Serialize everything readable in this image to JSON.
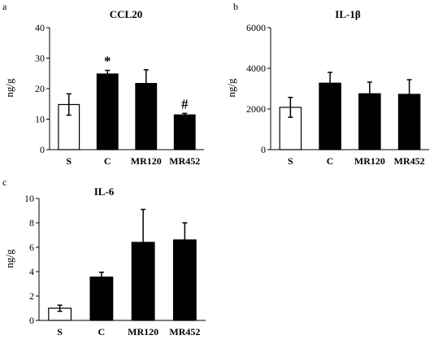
{
  "chart_data": [
    {
      "panel": "a",
      "type": "bar",
      "title": "CCL20",
      "xlabel": "",
      "ylabel": "ng/g",
      "categories": [
        "S",
        "C",
        "MR120",
        "MR452"
      ],
      "values": [
        14.8,
        24.8,
        21.7,
        11.4
      ],
      "errors": [
        3.5,
        1.2,
        4.5,
        0.5
      ],
      "bar_fill": [
        "white",
        "black",
        "black",
        "black"
      ],
      "annotations": [
        "",
        "*",
        "",
        "#"
      ],
      "ylim": [
        0,
        40
      ],
      "yticks": [
        "0",
        "10",
        "20",
        "30",
        "40"
      ],
      "grid": false,
      "legend": "none"
    },
    {
      "panel": "b",
      "type": "bar",
      "title": "IL-1β",
      "xlabel": "",
      "ylabel": "ng/g",
      "categories": [
        "S",
        "C",
        "MR120",
        "MR452"
      ],
      "values": [
        2080,
        3270,
        2750,
        2720
      ],
      "errors": [
        490,
        530,
        570,
        720
      ],
      "bar_fill": [
        "white",
        "black",
        "black",
        "black"
      ],
      "annotations": [
        "",
        "",
        "",
        ""
      ],
      "ylim": [
        0,
        6000
      ],
      "yticks": [
        "0",
        "2000",
        "4000",
        "6000"
      ],
      "grid": false,
      "legend": "none"
    },
    {
      "panel": "c",
      "type": "bar",
      "title": "IL-6",
      "xlabel": "",
      "ylabel": "ng/g",
      "categories": [
        "S",
        "C",
        "MR120",
        "MR452"
      ],
      "values": [
        1.0,
        3.55,
        6.4,
        6.6
      ],
      "errors": [
        0.25,
        0.4,
        2.7,
        1.4
      ],
      "bar_fill": [
        "white",
        "black",
        "black",
        "black"
      ],
      "annotations": [
        "",
        "",
        "",
        ""
      ],
      "ylim": [
        0,
        10
      ],
      "yticks": [
        "0",
        "2",
        "4",
        "6",
        "8",
        "10"
      ],
      "grid": false,
      "legend": "none"
    }
  ]
}
